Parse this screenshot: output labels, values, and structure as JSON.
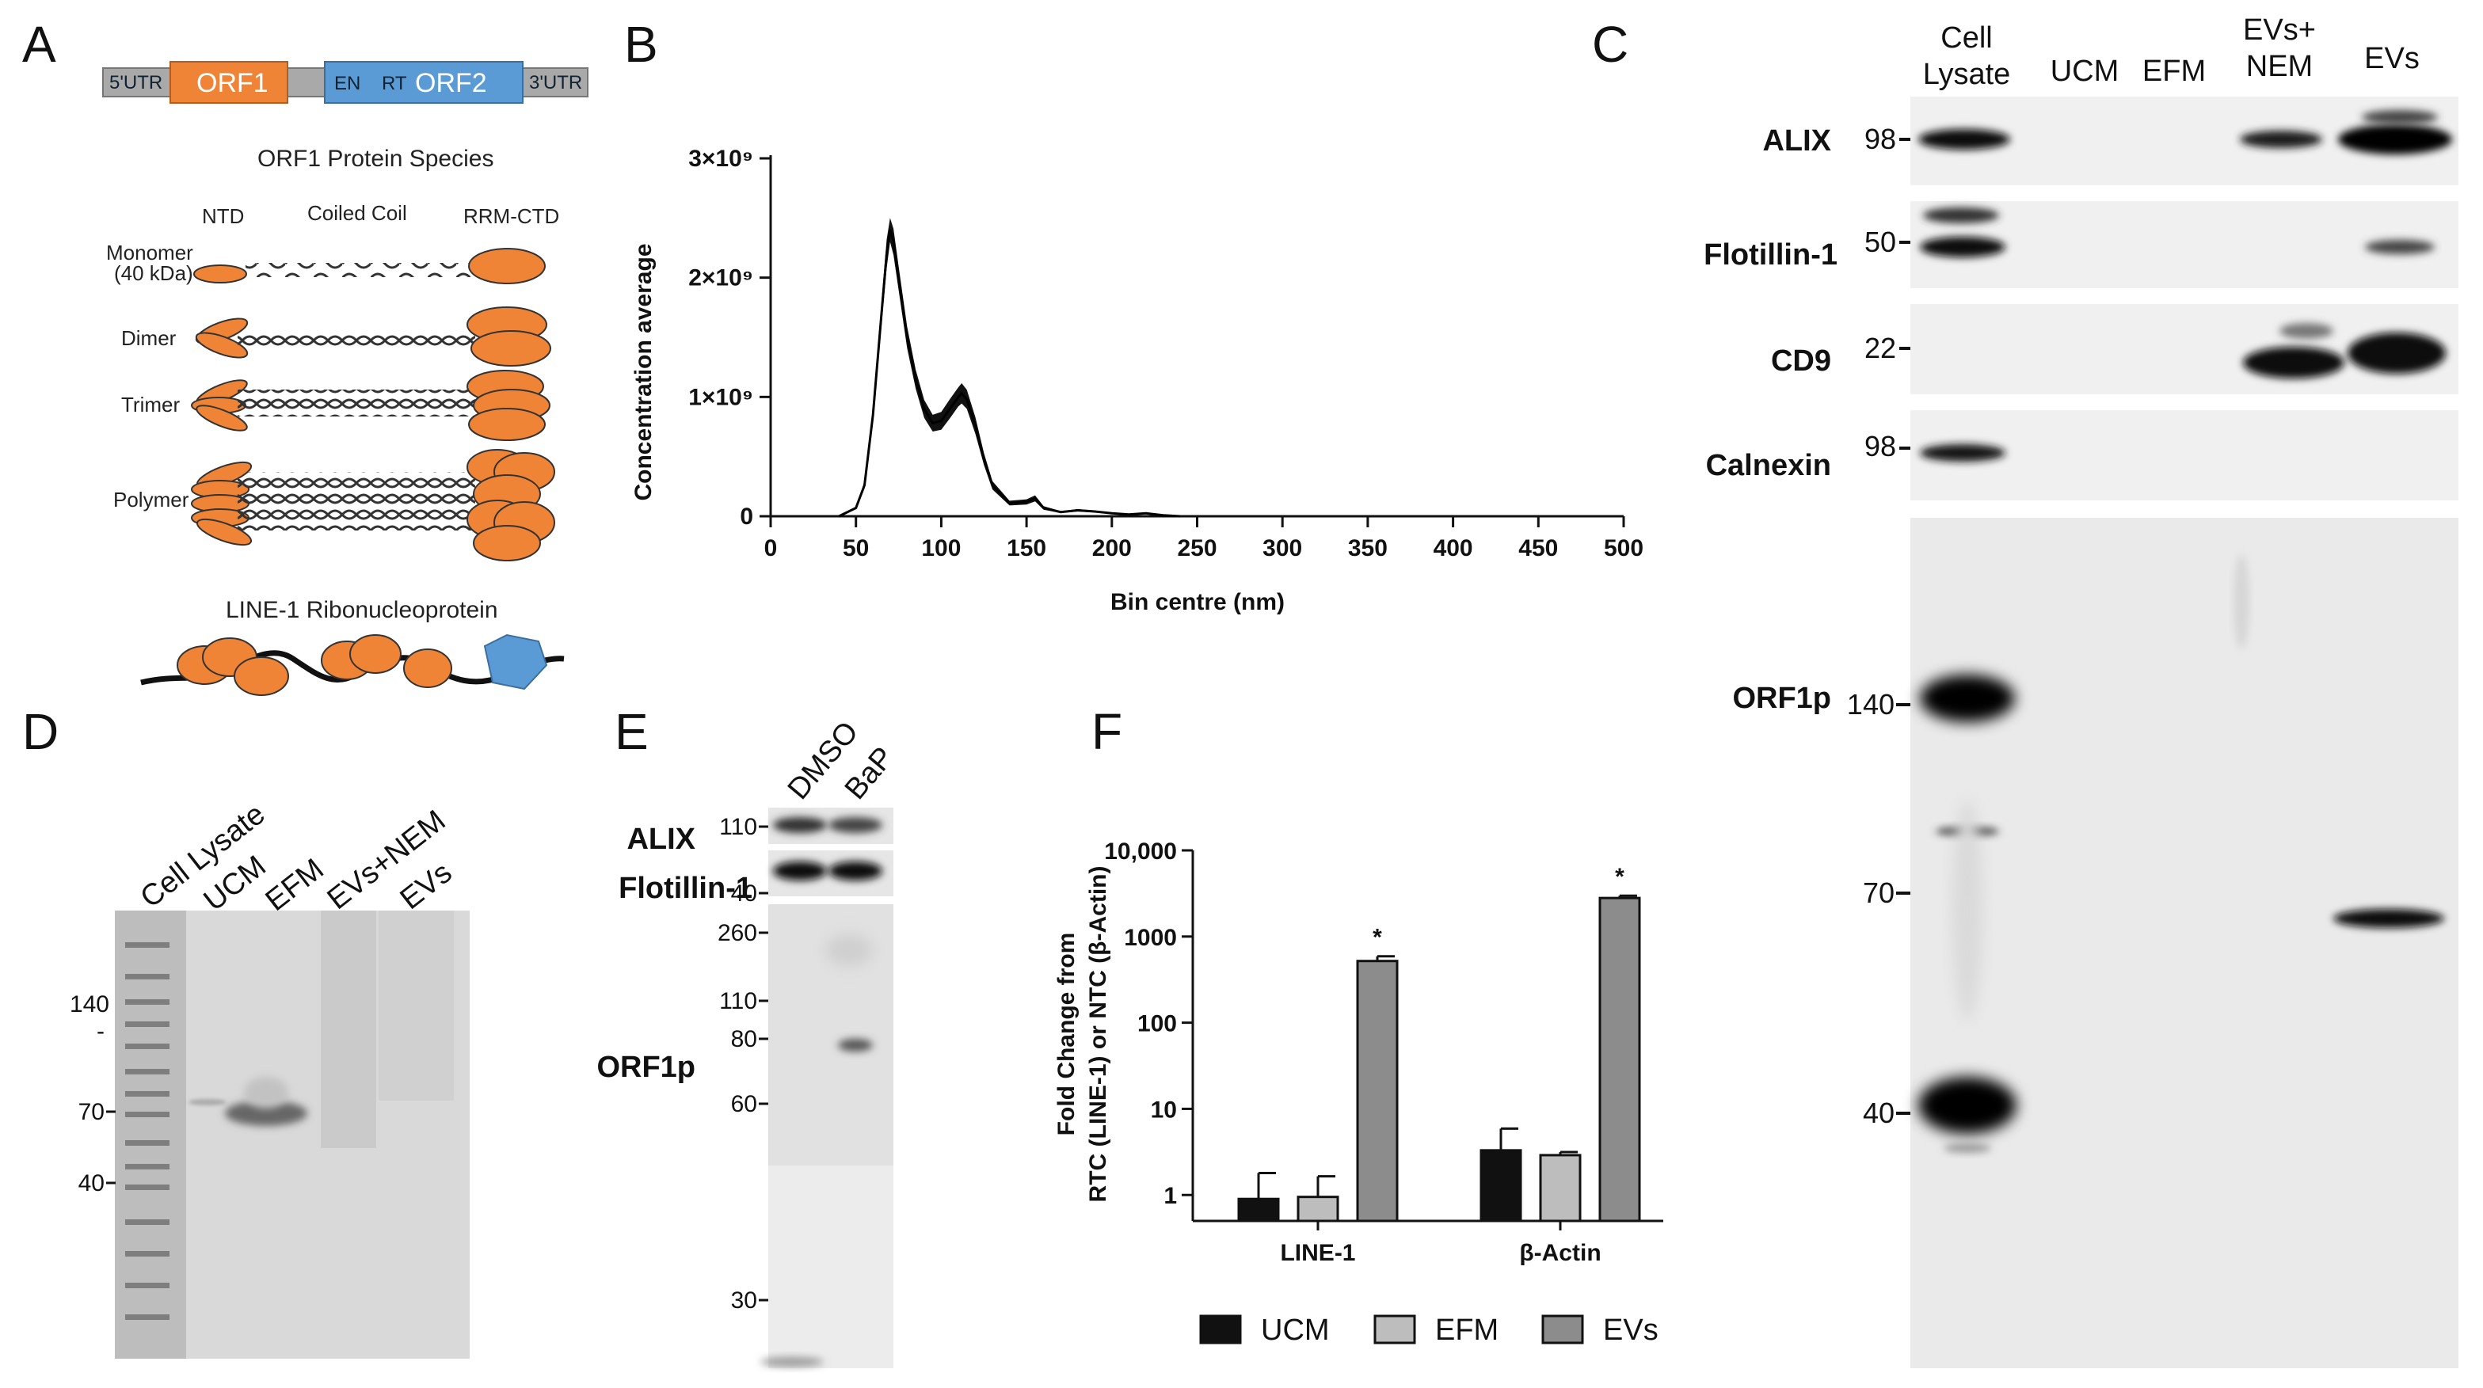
{
  "panels": {
    "A": {
      "label": "A",
      "gene": {
        "utr5": "5'UTR",
        "orf1": "ORF1",
        "en": "EN",
        "rt": "RT",
        "orf2": "ORF2",
        "utr3": "3'UTR"
      },
      "species_title": "ORF1 Protein Species",
      "domains": {
        "ntd": "NTD",
        "coiled": "Coiled Coil",
        "rrm": "RRM-CTD"
      },
      "species": {
        "monomer": "Monomer",
        "monomer_kda": "(40 kDa)",
        "dimer": "Dimer",
        "trimer": "Trimer",
        "polymer": "Polymer"
      },
      "rnp_title": "LINE-1 Ribonucleoprotein"
    },
    "B": {
      "label": "B",
      "chart_data": {
        "type": "area",
        "xlabel": "Bin centre (nm)",
        "ylabel": "Concentration average",
        "xlim": [
          0,
          500
        ],
        "ylim": [
          0,
          3000000000
        ],
        "xticks": [
          "0",
          "50",
          "100",
          "150",
          "200",
          "250",
          "300",
          "350",
          "400",
          "450",
          "500"
        ],
        "yticks": [
          {
            "value": 0,
            "label": "0"
          },
          {
            "value": 1000000000,
            "label": "1×10⁹"
          },
          {
            "value": 2000000000,
            "label": "2×10⁹"
          },
          {
            "value": 3000000000,
            "label": "3×10⁹"
          }
        ],
        "x": [
          40,
          50,
          55,
          60,
          65,
          68,
          70,
          72,
          75,
          80,
          85,
          90,
          95,
          100,
          105,
          110,
          112,
          115,
          120,
          125,
          130,
          140,
          150,
          155,
          160,
          170,
          180,
          190,
          200,
          210,
          220,
          230,
          240
        ],
        "mean": [
          0,
          70000000,
          260000000,
          850000000,
          1700000000,
          2200000000,
          2400000000,
          2300000000,
          2000000000,
          1500000000,
          1150000000,
          900000000,
          780000000,
          800000000,
          900000000,
          1000000000,
          1030000000,
          980000000,
          760000000,
          480000000,
          260000000,
          110000000,
          120000000,
          150000000,
          70000000,
          35000000,
          50000000,
          40000000,
          25000000,
          15000000,
          25000000,
          8000000,
          0
        ],
        "err": [
          0,
          10000000,
          30000000,
          70000000,
          100000000,
          120000000,
          100000000,
          110000000,
          100000000,
          90000000,
          80000000,
          75000000,
          70000000,
          75000000,
          80000000,
          80000000,
          85000000,
          80000000,
          70000000,
          50000000,
          35000000,
          20000000,
          22000000,
          25000000,
          15000000,
          8000000,
          10000000,
          8000000,
          6000000,
          4000000,
          5000000,
          3000000,
          0
        ]
      }
    },
    "C": {
      "label": "C",
      "lanes": [
        {
          "l1": "Cell",
          "l2": "Lysate"
        },
        {
          "l1": "UCM",
          "l2": ""
        },
        {
          "l1": "EFM",
          "l2": ""
        },
        {
          "l1": "EVs+",
          "l2": "NEM"
        },
        {
          "l1": "EVs",
          "l2": ""
        }
      ],
      "rows": [
        {
          "name": "ALIX",
          "mw": "98"
        },
        {
          "name": "Flotillin-1",
          "mw": "50"
        },
        {
          "name": "CD9",
          "mw": "22"
        },
        {
          "name": "Calnexin",
          "mw": "98"
        }
      ],
      "orf_name": "ORF1p",
      "orf_mw": [
        "140",
        "70",
        "40"
      ]
    },
    "D": {
      "label": "D",
      "lanes": [
        "Cell Lysate",
        "UCM",
        "EFM",
        "EVs+NEM",
        "EVs"
      ],
      "mw": [
        "140",
        "-",
        "70",
        "40"
      ]
    },
    "E": {
      "label": "E",
      "lanes": [
        "DMSO",
        "BaP"
      ],
      "rows": [
        {
          "name": "ALIX",
          "mw": "110"
        },
        {
          "name": "Flotillin-1",
          "mw": "40"
        }
      ],
      "orf_name": "ORF1p",
      "orf_mw": [
        "260",
        "110",
        "80",
        "60",
        "30"
      ]
    },
    "F": {
      "label": "F",
      "chart_data": {
        "type": "bar",
        "log_y": true,
        "ylabel_1": "Fold Change from",
        "ylabel_2": "RTC (LINE-1) or NTC (β-Actin)",
        "ylim": [
          0.5,
          10000
        ],
        "yticks": [
          {
            "value": 1,
            "label": "1"
          },
          {
            "value": 10,
            "label": "10"
          },
          {
            "value": 100,
            "label": "100"
          },
          {
            "value": 1000,
            "label": "1000"
          },
          {
            "value": 10000,
            "label": "10,000"
          }
        ],
        "categories": [
          "LINE-1",
          "β-Actin"
        ],
        "series": [
          {
            "name": "UCM",
            "color": "#111111",
            "values": [
              0.9,
              3.3
            ],
            "errors": [
              0.9,
              2.6
            ]
          },
          {
            "name": "EFM",
            "color": "#bdbdbd",
            "values": [
              0.95,
              2.9
            ],
            "errors": [
              0.7,
              0.25
            ]
          },
          {
            "name": "EVs",
            "color": "#8c8c8c",
            "values": [
              520,
              2800
            ],
            "errors": [
              70,
              180
            ]
          }
        ],
        "significance": [
          "*",
          "*"
        ],
        "legend_position": "bottom"
      }
    }
  },
  "colors": {
    "orf1": "#f08436",
    "orf2": "#5b9bd5",
    "utr": "#a9a9a9",
    "bar_dark": "#111111",
    "bar_light": "#bdbdbd",
    "bar_mid": "#8c8c8c"
  }
}
